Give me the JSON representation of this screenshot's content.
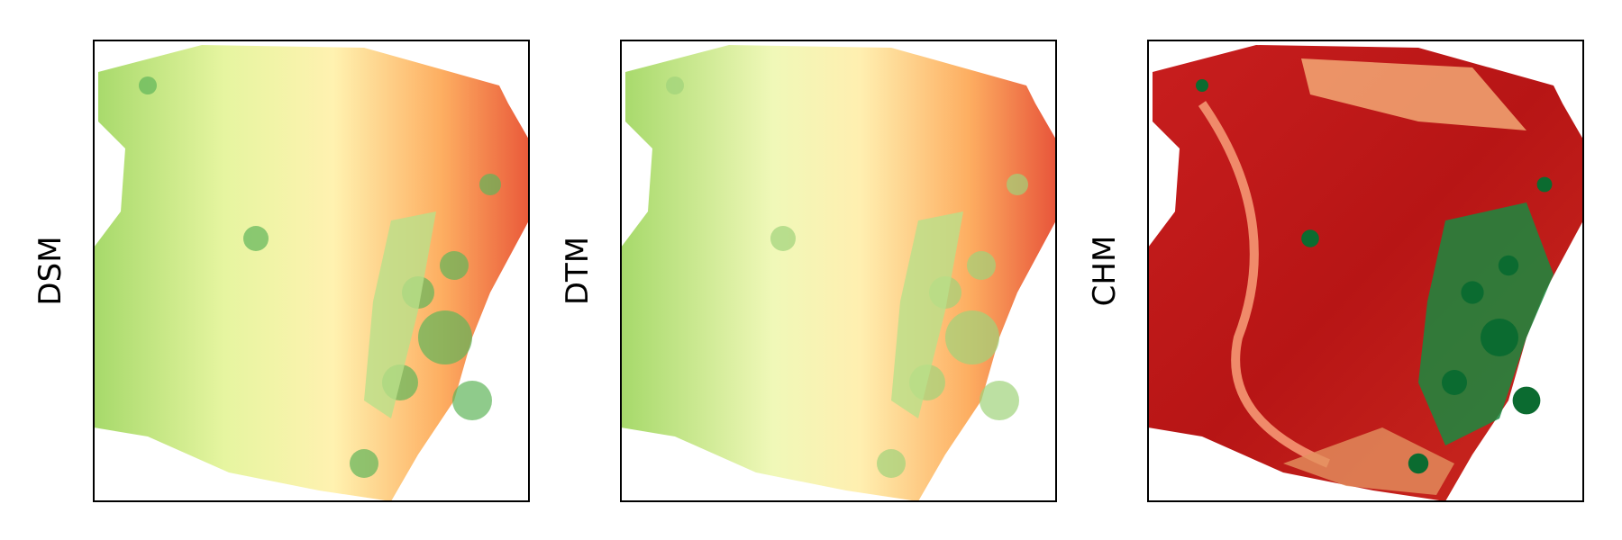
{
  "panels": [
    {
      "label": "DSM"
    },
    {
      "label": "DTM"
    },
    {
      "label": "CHM"
    }
  ]
}
